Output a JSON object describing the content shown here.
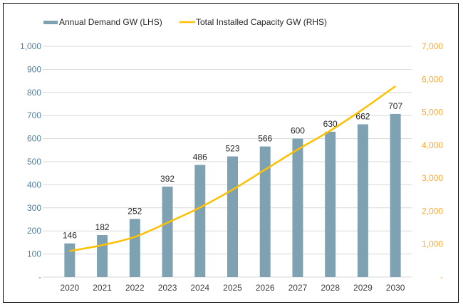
{
  "chart_data": {
    "type": "bar+line",
    "categories": [
      "2020",
      "2021",
      "2022",
      "2023",
      "2024",
      "2025",
      "2026",
      "2027",
      "2028",
      "2029",
      "2030"
    ],
    "series": [
      {
        "name": "Annual Demand GW (LHS)",
        "type": "bar",
        "axis": "left",
        "color": "#7fa2b3",
        "values": [
          146,
          182,
          252,
          392,
          486,
          523,
          566,
          600,
          630,
          662,
          707
        ],
        "data_labels": true
      },
      {
        "name": "Total Installed Capacity GW (RHS)",
        "type": "line",
        "axis": "right",
        "color": "#ffc000",
        "values": [
          790,
          970,
          1220,
          1650,
          2110,
          2650,
          3260,
          3870,
          4440,
          5090,
          5790
        ]
      }
    ],
    "y_left": {
      "range": [
        0,
        1000
      ],
      "ticks": [
        "-",
        "100",
        "200",
        "300",
        "400",
        "500",
        "600",
        "700",
        "800",
        "900",
        "1,000"
      ],
      "color": "#4f7f9c"
    },
    "y_right": {
      "range": [
        0,
        7000
      ],
      "ticks": [
        "-",
        "1,000",
        "2,000",
        "3,000",
        "4,000",
        "5,000",
        "6,000",
        "7,000"
      ],
      "color": "#ffa733"
    },
    "grid": true,
    "legend": "top"
  }
}
